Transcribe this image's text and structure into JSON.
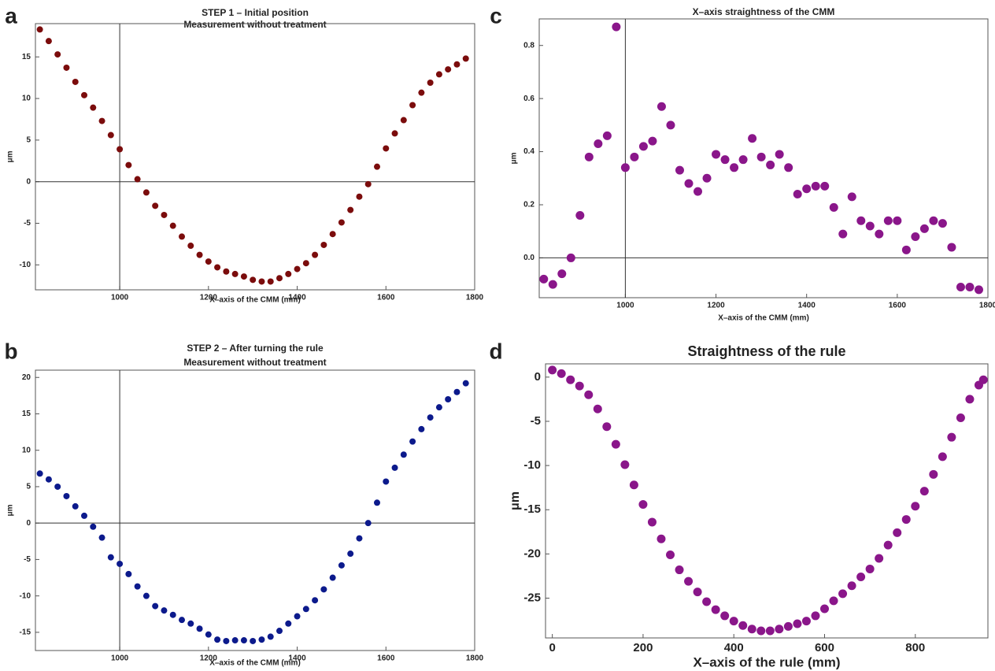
{
  "chart_data": [
    {
      "type": "scatter",
      "panel_label": "a",
      "title": "STEP 1 – Initial position",
      "subtitle": "Measurement without treatment",
      "x_label": "X–axis of the CMM (mm)",
      "y_label": "μm",
      "color": "#7b0c0c",
      "axes_origin": [
        1000,
        0
      ],
      "xlim": [
        810,
        1800
      ],
      "xticks": [
        1000,
        1200,
        1400,
        1600,
        1800
      ],
      "ylim": [
        -13,
        19
      ],
      "yticks": [
        -10,
        -5,
        0,
        5,
        10,
        15
      ],
      "x": [
        820,
        840,
        860,
        880,
        900,
        920,
        940,
        960,
        980,
        1000,
        1020,
        1040,
        1060,
        1080,
        1100,
        1120,
        1140,
        1160,
        1180,
        1200,
        1220,
        1240,
        1260,
        1280,
        1300,
        1320,
        1340,
        1360,
        1380,
        1400,
        1420,
        1440,
        1460,
        1480,
        1500,
        1520,
        1540,
        1560,
        1580,
        1600,
        1620,
        1640,
        1660,
        1680,
        1700,
        1720,
        1740,
        1760,
        1780
      ],
      "values": [
        18.3,
        16.9,
        15.3,
        13.7,
        12.0,
        10.4,
        8.9,
        7.3,
        5.6,
        3.9,
        2.0,
        0.3,
        -1.3,
        -2.9,
        -4.0,
        -5.3,
        -6.6,
        -7.7,
        -8.8,
        -9.6,
        -10.3,
        -10.8,
        -11.1,
        -11.4,
        -11.8,
        -12.0,
        -12.0,
        -11.6,
        -11.1,
        -10.5,
        -9.8,
        -8.8,
        -7.6,
        -6.3,
        -4.9,
        -3.4,
        -1.8,
        -0.3,
        1.8,
        4.0,
        5.8,
        7.4,
        9.2,
        10.7,
        11.9,
        12.9,
        13.5,
        14.1,
        14.8
      ]
    },
    {
      "type": "scatter",
      "panel_label": "b",
      "title": "STEP 2 – After turning the rule",
      "subtitle": "Measurement without treatment",
      "x_label": "X–axis of the CMM (mm)",
      "y_label": "μm",
      "color": "#0c1a8c",
      "axes_origin": [
        1000,
        0
      ],
      "xlim": [
        810,
        1800
      ],
      "xticks": [
        1000,
        1200,
        1400,
        1600,
        1800
      ],
      "ylim": [
        -17.5,
        21
      ],
      "yticks": [
        -15,
        -10,
        -5,
        0,
        5,
        10,
        15,
        20
      ],
      "x": [
        820,
        840,
        860,
        880,
        900,
        920,
        940,
        960,
        980,
        1000,
        1020,
        1040,
        1060,
        1080,
        1100,
        1120,
        1140,
        1160,
        1180,
        1200,
        1220,
        1240,
        1260,
        1280,
        1300,
        1320,
        1340,
        1360,
        1380,
        1400,
        1420,
        1440,
        1460,
        1480,
        1500,
        1520,
        1540,
        1560,
        1580,
        1600,
        1620,
        1640,
        1660,
        1680,
        1700,
        1720,
        1740,
        1760,
        1780
      ],
      "values": [
        6.8,
        6.0,
        5.0,
        3.7,
        2.3,
        1.0,
        -0.5,
        -2.0,
        -4.7,
        -5.6,
        -7.0,
        -8.7,
        -10.0,
        -11.4,
        -12.0,
        -12.6,
        -13.3,
        -13.8,
        -14.5,
        -15.3,
        -16.0,
        -16.2,
        -16.1,
        -16.1,
        -16.2,
        -16.0,
        -15.6,
        -14.8,
        -13.8,
        -12.8,
        -11.8,
        -10.6,
        -9.1,
        -7.5,
        -5.8,
        -4.2,
        -2.1,
        0.0,
        2.8,
        5.7,
        7.6,
        9.4,
        11.2,
        12.9,
        14.5,
        15.9,
        17.0,
        18.0,
        19.2
      ]
    },
    {
      "type": "scatter",
      "panel_label": "c",
      "title": "X–axis straightness of the CMM",
      "x_label": "X–axis of the CMM (mm)",
      "y_label": "μm",
      "color": "#8a168a",
      "axes_origin": [
        1000,
        0
      ],
      "xlim": [
        810,
        1800
      ],
      "xticks": [
        1000,
        1200,
        1400,
        1600,
        1800
      ],
      "ylim": [
        -0.15,
        0.9
      ],
      "yticks": [
        {
          "value": 0,
          "label": "0.0"
        },
        0.2,
        0.4,
        0.6,
        0.8
      ],
      "x": [
        820,
        840,
        860,
        880,
        900,
        920,
        940,
        960,
        980,
        1000,
        1020,
        1040,
        1060,
        1080,
        1100,
        1120,
        1140,
        1160,
        1180,
        1200,
        1220,
        1240,
        1260,
        1280,
        1300,
        1320,
        1340,
        1360,
        1380,
        1400,
        1420,
        1440,
        1460,
        1480,
        1500,
        1520,
        1540,
        1560,
        1580,
        1600,
        1620,
        1640,
        1660,
        1680,
        1700,
        1720,
        1740,
        1760,
        1780
      ],
      "values": [
        -0.08,
        -0.1,
        -0.06,
        0.0,
        0.16,
        0.38,
        0.43,
        0.46,
        0.87,
        0.34,
        0.38,
        0.42,
        0.44,
        0.57,
        0.5,
        0.33,
        0.28,
        0.25,
        0.3,
        0.39,
        0.37,
        0.34,
        0.37,
        0.45,
        0.38,
        0.35,
        0.39,
        0.34,
        0.24,
        0.26,
        0.27,
        0.27,
        0.19,
        0.09,
        0.23,
        0.14,
        0.12,
        0.09,
        0.14,
        0.14,
        0.03,
        0.08,
        0.11,
        0.14,
        0.13,
        0.04,
        -0.11,
        -0.11,
        -0.12
      ]
    },
    {
      "type": "scatter",
      "panel_label": "d",
      "title": "Straightness of the rule",
      "x_label": "X–axis of the rule (mm)",
      "y_label": "μm",
      "color": "#8a168a",
      "xlim": [
        -15,
        960
      ],
      "xticks": [
        0,
        200,
        400,
        600,
        800
      ],
      "ylim": [
        -29.5,
        1.5
      ],
      "yticks": [
        -25,
        -20,
        -15,
        -10,
        -5,
        0
      ],
      "x": [
        0,
        20,
        40,
        60,
        80,
        100,
        120,
        140,
        160,
        180,
        200,
        220,
        240,
        260,
        280,
        300,
        320,
        340,
        360,
        380,
        400,
        420,
        440,
        460,
        480,
        500,
        520,
        540,
        560,
        580,
        600,
        620,
        640,
        660,
        680,
        700,
        720,
        740,
        760,
        780,
        800,
        820,
        840,
        860,
        880,
        900,
        920,
        940,
        950
      ],
      "values": [
        0.8,
        0.4,
        -0.3,
        -1.0,
        -2.0,
        -3.6,
        -5.6,
        -7.6,
        -9.9,
        -12.2,
        -14.4,
        -16.4,
        -18.3,
        -20.1,
        -21.8,
        -23.1,
        -24.3,
        -25.4,
        -26.3,
        -27.0,
        -27.6,
        -28.1,
        -28.5,
        -28.7,
        -28.7,
        -28.5,
        -28.2,
        -27.9,
        -27.6,
        -27.0,
        -26.2,
        -25.3,
        -24.5,
        -23.6,
        -22.6,
        -21.7,
        -20.5,
        -19.0,
        -17.6,
        -16.1,
        -14.6,
        -12.9,
        -11.0,
        -9.0,
        -6.8,
        -4.6,
        -2.5,
        -0.9,
        -0.3
      ]
    }
  ]
}
